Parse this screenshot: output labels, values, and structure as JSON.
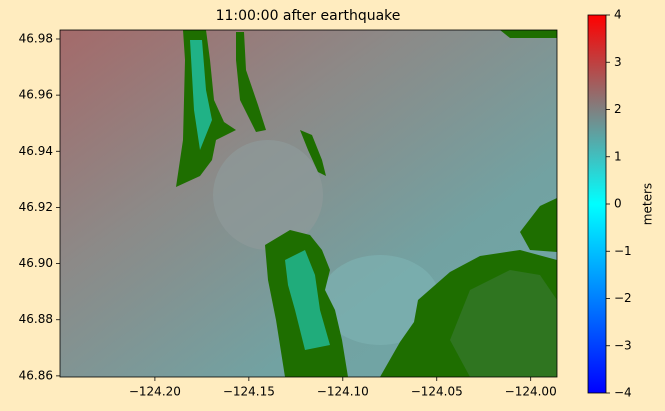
{
  "chart_data": {
    "type": "heatmap",
    "title": "11:00:00 after earthquake",
    "xlim": [
      -124.2505,
      -123.986
    ],
    "xticks": [
      {
        "value": -124.2,
        "label": "−124.20"
      },
      {
        "value": -124.15,
        "label": "−124.15"
      },
      {
        "value": -124.1,
        "label": "−124.10"
      },
      {
        "value": -124.05,
        "label": "−124.05"
      },
      {
        "value": -124.0,
        "label": "−124.00"
      }
    ],
    "ylim": [
      46.8596,
      46.9832
    ],
    "yticks": [
      46.86,
      46.88,
      {
        "value": 46.9,
        "label": "46.90"
      },
      46.92,
      46.94,
      46.96,
      46.98
    ],
    "colorbar": {
      "label": "meters",
      "lim": [
        -4,
        4
      ],
      "ticks": [
        {
          "value": -4,
          "label": "−4"
        },
        {
          "value": -3,
          "label": "−3"
        },
        {
          "value": -2,
          "label": "−2"
        },
        {
          "value": -1,
          "label": "−1"
        },
        0,
        1,
        2,
        3,
        4
      ]
    }
  }
}
